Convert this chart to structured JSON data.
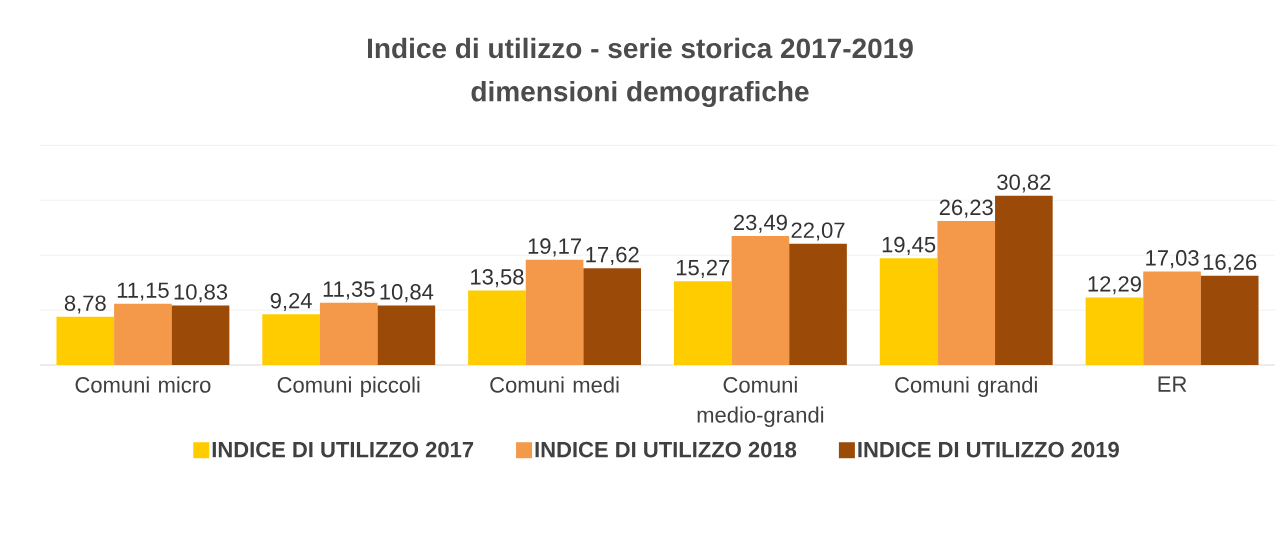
{
  "chart_data": {
    "type": "bar",
    "title": "Indice di utilizzo - serie storica 2017-2019",
    "subtitle": "dimensioni demografiche",
    "categories": [
      "Comuni micro",
      "Comuni piccoli",
      "Comuni medi",
      "Comuni medio-grandi",
      "Comuni grandi",
      "ER"
    ],
    "series": [
      {
        "name": "INDICE DI UTILIZZO 2017",
        "color": "#ffcc00",
        "values": [
          8.78,
          9.24,
          13.58,
          15.27,
          19.45,
          12.29
        ],
        "value_labels": [
          "8,78",
          "9,24",
          "13,58",
          "15,27",
          "19,45",
          "12,29"
        ]
      },
      {
        "name": "INDICE DI UTILIZZO 2018",
        "color": "#f4994a",
        "values": [
          11.15,
          11.35,
          19.17,
          23.49,
          26.23,
          17.03
        ],
        "value_labels": [
          "11,15",
          "11,35",
          "19,17",
          "23,49",
          "26,23",
          "17,03"
        ]
      },
      {
        "name": "INDICE DI UTILIZZO 2019",
        "color": "#9b4a08",
        "values": [
          10.83,
          10.84,
          17.62,
          22.07,
          30.82,
          16.26
        ],
        "value_labels": [
          "10,83",
          "10,84",
          "17,62",
          "22,07",
          "30,82",
          "16,26"
        ]
      }
    ],
    "grid": "y",
    "legend": "bottom",
    "tick_labels": "x"
  }
}
